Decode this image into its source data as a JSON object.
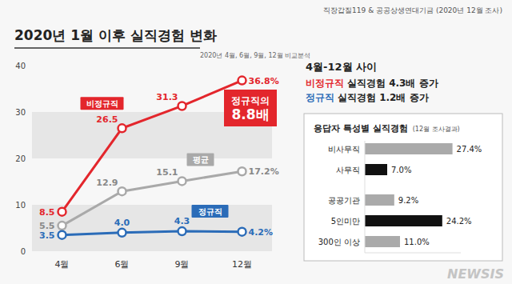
{
  "header": {
    "source": "직장갑질119 & 공공상생연대기금 (2020년 12월 조사)",
    "watermark": "NEWSIS"
  },
  "summary": {
    "heading": "4월-12월 사이",
    "lines": [
      {
        "highlight": "비정규직",
        "rest": "실직경험 4.3배 증가",
        "color": "#e3262c"
      },
      {
        "highlight": "정규직",
        "rest": "실직경험 1.2배 증가",
        "color": "#2b6cb8"
      }
    ]
  },
  "chart_data": [
    {
      "type": "line",
      "title": "2020년 1월 이후 실직경험 변화",
      "subtitle": "2020년 4월, 6월, 9월, 12월 비교분석",
      "annotation": "정규직의 8.8배",
      "categories": [
        "4월",
        "6월",
        "9월",
        "12월"
      ],
      "series": [
        {
          "name": "비정규직",
          "color": "#e3262c",
          "marker": "circle",
          "values": [
            8.5,
            26.5,
            31.3,
            36.8
          ],
          "value_labels": [
            "8.5",
            "26.5",
            "31.3",
            "36.8%"
          ]
        },
        {
          "name": "평균",
          "color": "#a9a9a9",
          "marker": "circle",
          "values": [
            5.5,
            12.9,
            15.1,
            17.2
          ],
          "value_labels": [
            "5.5",
            "12.9",
            "15.1",
            "17.2%"
          ]
        },
        {
          "name": "정규직",
          "color": "#2b6cb8",
          "marker": "circle",
          "values": [
            3.5,
            4.0,
            4.3,
            4.2
          ],
          "value_labels": [
            "3.5",
            "4.0",
            "4.3",
            "4.2%"
          ]
        }
      ],
      "ylim": [
        0,
        40
      ],
      "yticks": [
        0,
        10,
        20,
        30,
        40
      ],
      "grid": false,
      "data_labels": true
    },
    {
      "type": "bar",
      "orientation": "horizontal",
      "title": "응답자 특성별 실직경험",
      "subtitle": "(12월 조사결과)",
      "categories": [
        "비사무직",
        "사무직",
        "공공기관",
        "5인미만",
        "300인 이상"
      ],
      "values": [
        27.4,
        7.0,
        9.2,
        24.2,
        11.0
      ],
      "value_labels": [
        "27.4%",
        "7.0%",
        "9.2%",
        "24.2%",
        "11.0%"
      ],
      "colors": [
        "#aaaaaa",
        "#111111",
        "#aaaaaa",
        "#111111",
        "#aaaaaa"
      ],
      "xlim": [
        0,
        30
      ],
      "tick_labels": false,
      "data_labels": true
    }
  ]
}
